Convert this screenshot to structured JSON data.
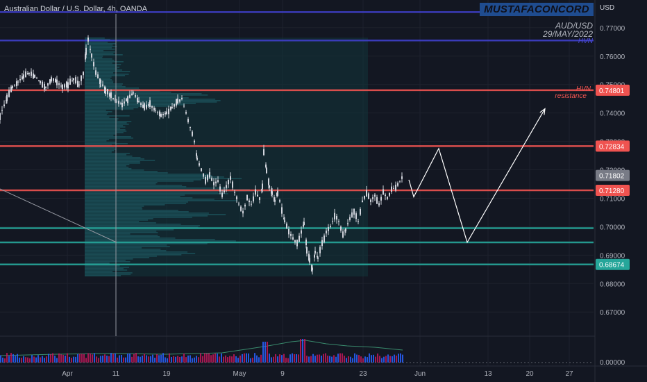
{
  "header": {
    "symbol_title": "Australian Dollar / U.S. Dollar, 4h, OANDA",
    "brand": "MUSTAFACONCORD",
    "currency": "USD"
  },
  "annotations": {
    "pair": "AUD/USD",
    "date": "29/MAY/2022",
    "hvn_top": "HVN",
    "hvn_mid": "HVN",
    "resistance": "resistance"
  },
  "colors": {
    "background": "#131722",
    "candle": "#d1d4dc",
    "resistance_red": "#ef5350",
    "support_green": "#26a69a",
    "hvn_blue": "#3f3fc9",
    "volume_profile": "#1d5b63",
    "projection": "#ffffff"
  },
  "chart_data": {
    "type": "candlestick",
    "title": "Australian Dollar / U.S. Dollar, 4h, OANDA",
    "y_axis": {
      "range": [
        0.662,
        0.779
      ],
      "ticks": [
        "0.77000",
        "0.76000",
        "0.75000",
        "0.74000",
        "0.73000",
        "0.72000",
        "0.71000",
        "0.70000",
        "0.69000",
        "0.68000",
        "0.67000"
      ],
      "tick_values": [
        0.77,
        0.76,
        0.75,
        0.74,
        0.73,
        0.72,
        0.71,
        0.7,
        0.69,
        0.68,
        0.67
      ]
    },
    "x_axis": {
      "labels": [
        "Apr",
        "11",
        "19",
        "May",
        "9",
        "23",
        "Jun",
        "13",
        "20",
        "27"
      ]
    },
    "price_labels": [
      {
        "text": "0.74801",
        "value": 0.74801,
        "color": "#ef5350"
      },
      {
        "text": "0.72834",
        "value": 0.72834,
        "color": "#ef5350"
      },
      {
        "text": "0.71802",
        "value": 0.71802,
        "color": "#787b86"
      },
      {
        "text": "0.71280",
        "value": 0.7128,
        "color": "#ef5350"
      },
      {
        "text": "0.68674",
        "value": 0.68674,
        "color": "#26a69a"
      }
    ],
    "horizontal_levels": [
      {
        "value": 0.7755,
        "color": "#3f3fc9"
      },
      {
        "value": 0.7655,
        "color": "#3f3fc9"
      },
      {
        "value": 0.74801,
        "color": "#ef5350"
      },
      {
        "value": 0.72834,
        "color": "#ef5350"
      },
      {
        "value": 0.7128,
        "color": "#ef5350"
      },
      {
        "value": 0.6995,
        "color": "#26a69a"
      },
      {
        "value": 0.6945,
        "color": "#26a69a"
      },
      {
        "value": 0.68674,
        "color": "#26a69a"
      }
    ],
    "price_path": [
      [
        0,
        0.739
      ],
      [
        10,
        0.745
      ],
      [
        18,
        0.749
      ],
      [
        26,
        0.751
      ],
      [
        34,
        0.753
      ],
      [
        42,
        0.754
      ],
      [
        50,
        0.753
      ],
      [
        58,
        0.751
      ],
      [
        66,
        0.749
      ],
      [
        74,
        0.752
      ],
      [
        82,
        0.751
      ],
      [
        90,
        0.749
      ],
      [
        98,
        0.75
      ],
      [
        106,
        0.752
      ],
      [
        114,
        0.75
      ],
      [
        120,
        0.754
      ],
      [
        124,
        0.762
      ],
      [
        127,
        0.766
      ],
      [
        132,
        0.76
      ],
      [
        138,
        0.754
      ],
      [
        145,
        0.751
      ],
      [
        152,
        0.748
      ],
      [
        160,
        0.746
      ],
      [
        168,
        0.744
      ],
      [
        176,
        0.743
      ],
      [
        184,
        0.745
      ],
      [
        192,
        0.747
      ],
      [
        200,
        0.744
      ],
      [
        208,
        0.742
      ],
      [
        216,
        0.743
      ],
      [
        224,
        0.741
      ],
      [
        232,
        0.739
      ],
      [
        240,
        0.74
      ],
      [
        248,
        0.742
      ],
      [
        256,
        0.744
      ],
      [
        262,
        0.745
      ],
      [
        268,
        0.74
      ],
      [
        274,
        0.735
      ],
      [
        280,
        0.73
      ],
      [
        284,
        0.724
      ],
      [
        290,
        0.72
      ],
      [
        296,
        0.716
      ],
      [
        302,
        0.718
      ],
      [
        308,
        0.715
      ],
      [
        314,
        0.716
      ],
      [
        320,
        0.711
      ],
      [
        326,
        0.714
      ],
      [
        332,
        0.717
      ],
      [
        338,
        0.712
      ],
      [
        344,
        0.708
      ],
      [
        350,
        0.705
      ],
      [
        356,
        0.71
      ],
      [
        362,
        0.708
      ],
      [
        368,
        0.712
      ],
      [
        374,
        0.71
      ],
      [
        378,
        0.714
      ],
      [
        380,
        0.726
      ],
      [
        384,
        0.72
      ],
      [
        388,
        0.714
      ],
      [
        392,
        0.712
      ],
      [
        396,
        0.709
      ],
      [
        400,
        0.712
      ],
      [
        406,
        0.706
      ],
      [
        410,
        0.702
      ],
      [
        416,
        0.698
      ],
      [
        422,
        0.696
      ],
      [
        428,
        0.694
      ],
      [
        434,
        0.698
      ],
      [
        438,
        0.701
      ],
      [
        442,
        0.692
      ],
      [
        446,
        0.688
      ],
      [
        450,
        0.685
      ],
      [
        454,
        0.691
      ],
      [
        458,
        0.689
      ],
      [
        464,
        0.694
      ],
      [
        470,
        0.698
      ],
      [
        476,
        0.7
      ],
      [
        482,
        0.704
      ],
      [
        488,
        0.702
      ],
      [
        494,
        0.697
      ],
      [
        498,
        0.699
      ],
      [
        504,
        0.703
      ],
      [
        510,
        0.705
      ],
      [
        516,
        0.702
      ],
      [
        522,
        0.709
      ],
      [
        528,
        0.712
      ],
      [
        534,
        0.709
      ],
      [
        540,
        0.711
      ],
      [
        546,
        0.708
      ],
      [
        552,
        0.712
      ],
      [
        558,
        0.71
      ],
      [
        564,
        0.713
      ],
      [
        570,
        0.714
      ],
      [
        576,
        0.716
      ],
      [
        580,
        0.7175
      ]
    ],
    "projection": [
      [
        589,
        0.7165
      ],
      [
        596,
        0.7105
      ],
      [
        632,
        0.7275
      ],
      [
        673,
        0.6945
      ],
      [
        785,
        0.7415
      ]
    ],
    "volume_profile": {
      "x_start": 122,
      "price_range": [
        0.6825,
        0.7665
      ]
    },
    "volume_axis": {
      "tick": "0.00000"
    },
    "notes": "candles and profile are approximations read from the chart"
  }
}
